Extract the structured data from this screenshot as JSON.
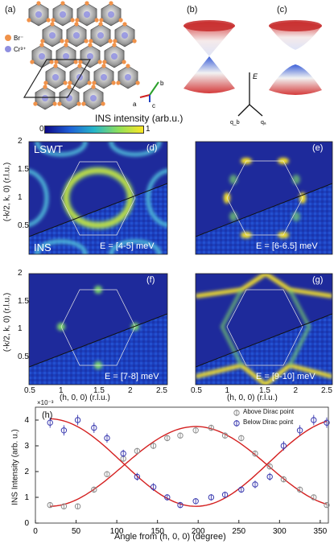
{
  "panels": {
    "a": "(a)",
    "b": "(b)",
    "c": "(c)",
    "d": "(d)",
    "e": "(e)",
    "f": "(f)",
    "g": "(g)",
    "h": "(h)"
  },
  "crystal": {
    "legend": [
      "Br⁻",
      "Cr³⁺"
    ],
    "legend_colors": [
      "#f0924a",
      "#8f8fe0"
    ],
    "axes": [
      "a",
      "b",
      "c"
    ]
  },
  "dispersion": {
    "energy_label": "E",
    "qa_label": "qₐ",
    "qb_label": "q_b"
  },
  "colorbar": {
    "title": "INS intensity (arb.u.)",
    "min": "0",
    "max": "1",
    "colors": [
      "#0d0887",
      "#1f5fd6",
      "#26b5c8",
      "#8fdf5a",
      "#fde725"
    ]
  },
  "maps": {
    "ylabel": "(-k/2, k, 0) (r.l.u.)",
    "xlabel": "(h, 0, 0) (r.l.u.)",
    "yticks": [
      "2",
      "1.5",
      "1",
      "0.5"
    ],
    "xticks": [
      "0.5",
      "1",
      "1.5",
      "2",
      "2.5"
    ],
    "lswt_label": "LSWT",
    "ins_label": "INS",
    "energies": {
      "d": "E = [4-5] meV",
      "e": "E = [6-6.5] meV",
      "f": "E = [7-8] meV",
      "g": "E = [9-10] meV"
    }
  },
  "chart_data": {
    "type": "scatter",
    "title": "",
    "xlabel": "Angle from (h, 0, 0) (degree)",
    "ylabel": "INS Intensity (arb. u.)",
    "y_multiplier": "×10⁻³",
    "xlim": [
      0,
      360
    ],
    "ylim": [
      0,
      4.5
    ],
    "xticks": [
      "0",
      "50",
      "100",
      "150",
      "200",
      "250",
      "300",
      "350"
    ],
    "yticks": [
      "0",
      "1",
      "2",
      "3",
      "4"
    ],
    "legend_position": "top-right",
    "series": [
      {
        "name": "Above Dirac point",
        "color": "#8c8c8c",
        "x": [
          18,
          35,
          52,
          72,
          88,
          108,
          125,
          145,
          162,
          178,
          197,
          216,
          233,
          253,
          270,
          288,
          305,
          325,
          342,
          358
        ],
        "y": [
          0.7,
          0.65,
          0.65,
          1.3,
          1.9,
          2.5,
          2.8,
          3.0,
          3.3,
          3.4,
          3.6,
          3.7,
          3.4,
          3.3,
          2.7,
          2.2,
          1.7,
          1.3,
          1.0,
          0.7
        ],
        "err": [
          0.1,
          0.1,
          0.1,
          0.12,
          0.12,
          0.12,
          0.12,
          0.12,
          0.12,
          0.12,
          0.12,
          0.12,
          0.12,
          0.12,
          0.12,
          0.12,
          0.12,
          0.12,
          0.1,
          0.1
        ]
      },
      {
        "name": "Below Dirac point",
        "color": "#3b3bb0",
        "x": [
          18,
          35,
          52,
          72,
          88,
          108,
          125,
          145,
          162,
          178,
          197,
          216,
          233,
          253,
          270,
          288,
          305,
          325,
          342,
          358
        ],
        "y": [
          3.9,
          3.6,
          4.0,
          3.7,
          3.3,
          2.7,
          1.8,
          1.4,
          1.0,
          0.7,
          0.85,
          1.0,
          1.1,
          1.3,
          1.5,
          1.8,
          3.0,
          3.6,
          4.0,
          3.9
        ],
        "err": [
          0.2,
          0.2,
          0.2,
          0.2,
          0.18,
          0.15,
          0.15,
          0.15,
          0.12,
          0.12,
          0.12,
          0.12,
          0.12,
          0.12,
          0.15,
          0.15,
          0.18,
          0.2,
          0.2,
          0.2
        ]
      }
    ],
    "fit_color": "#d42020"
  }
}
